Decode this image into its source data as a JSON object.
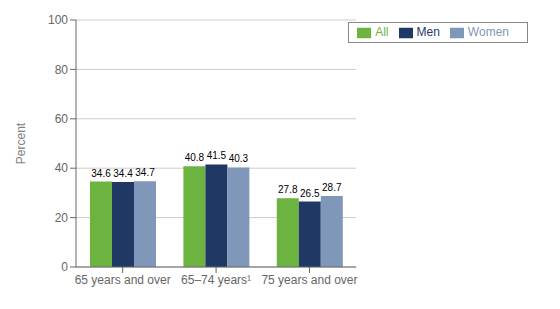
{
  "chart_data": {
    "type": "bar",
    "categories": [
      "65 years and over",
      "65–74 years¹",
      "75 years and over"
    ],
    "series": [
      {
        "name": "All",
        "color": "#6db33f",
        "values": [
          34.6,
          40.8,
          27.8
        ]
      },
      {
        "name": "Men",
        "color": "#1f3864",
        "values": [
          34.4,
          41.5,
          26.5
        ]
      },
      {
        "name": "Women",
        "color": "#7f97b8",
        "values": [
          34.7,
          40.3,
          28.7
        ]
      }
    ],
    "ylabel": "Percent",
    "ylim": [
      0,
      100
    ],
    "yticks": [
      0,
      20,
      40,
      60,
      80,
      100
    ],
    "grid": true,
    "legend": "upper right",
    "data_labels": true
  }
}
